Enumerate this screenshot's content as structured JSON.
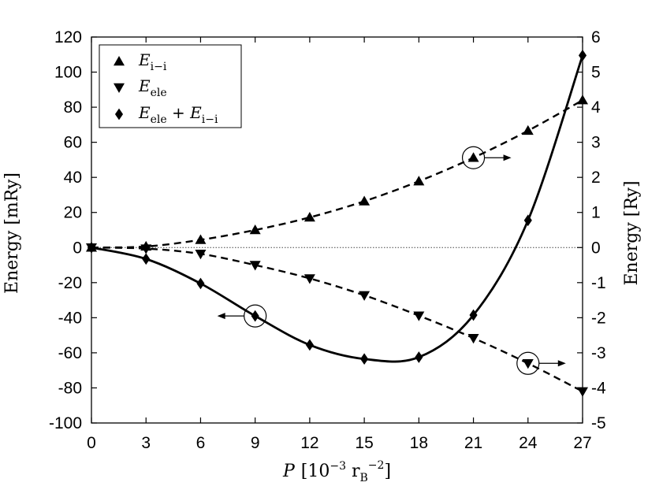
{
  "chart_data": {
    "type": "line",
    "x_axis": {
      "label_italic": "P",
      "label_unit_open": "[10",
      "label_unit_exp": "−3",
      "label_unit_r": " r",
      "label_unit_sub": "B",
      "label_unit_sup": "−2",
      "label_unit_close": "]",
      "range": [
        0,
        27
      ],
      "ticks": [
        0,
        3,
        6,
        9,
        12,
        15,
        18,
        21,
        24,
        27
      ]
    },
    "y_left": {
      "label": "Energy [mRy]",
      "range": [
        -100,
        120
      ],
      "ticks": [
        -100,
        -80,
        -60,
        -40,
        -20,
        0,
        20,
        40,
        60,
        80,
        100,
        120
      ]
    },
    "y_right": {
      "label": "Energy [Ry]",
      "range": [
        -5,
        6
      ],
      "ticks": [
        -5,
        -4,
        -3,
        -2,
        -1,
        0,
        1,
        2,
        3,
        4,
        5,
        6
      ]
    },
    "zero_line": true,
    "legend": {
      "placement": "top-left",
      "entries": [
        {
          "main": "E",
          "sub": "i−i",
          "marker": "triangle-up"
        },
        {
          "main": "E",
          "sub": "ele",
          "marker": "triangle-down"
        },
        {
          "main": "E",
          "sub": "ele",
          "plus": " + ",
          "main2": "E",
          "sub2": "i−i",
          "marker": "diamond"
        }
      ]
    },
    "series": [
      {
        "axis": "right",
        "marker": "triangle-up",
        "line": "dashed",
        "x": [
          0,
          3,
          6,
          9,
          12,
          15,
          18,
          21,
          24,
          27
        ],
        "y": [
          0,
          0.03,
          0.22,
          0.5,
          0.86,
          1.32,
          1.89,
          2.56,
          3.33,
          4.2
        ]
      },
      {
        "axis": "right",
        "marker": "triangle-down",
        "line": "dashed",
        "x": [
          0,
          3,
          6,
          9,
          12,
          15,
          18,
          21,
          24,
          27
        ],
        "y": [
          0,
          -0.03,
          -0.18,
          -0.5,
          -0.88,
          -1.36,
          -1.94,
          -2.58,
          -3.3,
          -4.1
        ]
      },
      {
        "axis": "left",
        "marker": "diamond",
        "line": "solid",
        "x": [
          0,
          3,
          6,
          9,
          12,
          15,
          18,
          21,
          24,
          27
        ],
        "y": [
          0,
          -6.5,
          -20.5,
          -39,
          -55.5,
          -63.5,
          -62.5,
          -38.5,
          15.5,
          109.5
        ]
      }
    ],
    "annotations": [
      {
        "series": 0,
        "x": 21,
        "arrow": "right"
      },
      {
        "series": 1,
        "x": 24,
        "arrow": "right"
      },
      {
        "series": 2,
        "x": 9,
        "arrow": "left"
      }
    ]
  }
}
